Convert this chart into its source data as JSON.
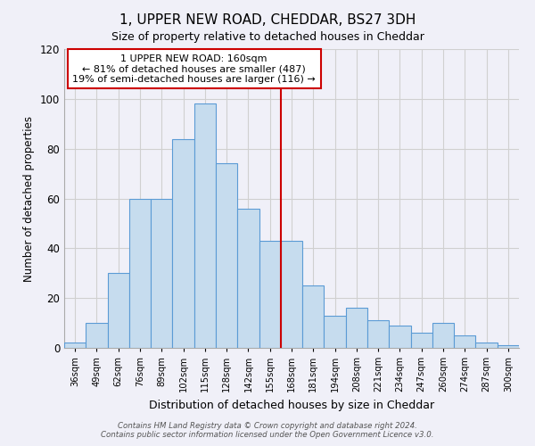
{
  "title": "1, UPPER NEW ROAD, CHEDDAR, BS27 3DH",
  "subtitle": "Size of property relative to detached houses in Cheddar",
  "xlabel": "Distribution of detached houses by size in Cheddar",
  "ylabel": "Number of detached properties",
  "bar_color": "#c6dcee",
  "bar_edge_color": "#5b9bd5",
  "background_color": "#f0f0f8",
  "grid_color": "#d0d0d0",
  "categories": [
    "36sqm",
    "49sqm",
    "62sqm",
    "76sqm",
    "89sqm",
    "102sqm",
    "115sqm",
    "128sqm",
    "142sqm",
    "155sqm",
    "168sqm",
    "181sqm",
    "194sqm",
    "208sqm",
    "221sqm",
    "234sqm",
    "247sqm",
    "260sqm",
    "274sqm",
    "287sqm",
    "300sqm"
  ],
  "values": [
    2,
    10,
    30,
    60,
    60,
    84,
    98,
    74,
    56,
    43,
    43,
    25,
    13,
    16,
    11,
    9,
    6,
    10,
    5,
    2,
    1
  ],
  "vline_x": 9.5,
  "vline_color": "#cc0000",
  "annotation_title": "1 UPPER NEW ROAD: 160sqm",
  "annotation_line1": "← 81% of detached houses are smaller (487)",
  "annotation_line2": "19% of semi-detached houses are larger (116) →",
  "annotation_box_color": "white",
  "annotation_box_edge_color": "#cc0000",
  "footnote1": "Contains HM Land Registry data © Crown copyright and database right 2024.",
  "footnote2": "Contains public sector information licensed under the Open Government Licence v3.0.",
  "ylim": [
    0,
    120
  ],
  "xlim_left": -0.5,
  "xlim_right": 20.5
}
